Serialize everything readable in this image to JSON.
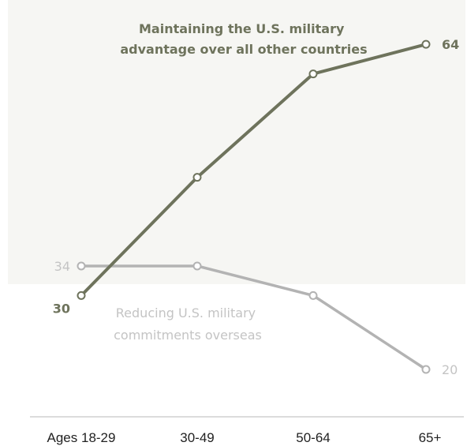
{
  "chart_data": {
    "type": "line",
    "categories": [
      "Ages 18-29",
      "30-49",
      "50-64",
      "65+"
    ],
    "ylim": [
      20,
      70
    ],
    "grid": false,
    "series": [
      {
        "name_lines": [
          "Maintaining the U.S. military",
          "advantage over all other countries"
        ],
        "values": [
          30,
          46,
          60,
          64
        ],
        "color": "#6e735c",
        "point_labels": [
          "30",
          "",
          "",
          "64"
        ],
        "label_color": "#6e735c"
      },
      {
        "name_lines": [
          "Reducing U.S. military",
          "commitments overseas"
        ],
        "values": [
          34,
          34,
          30,
          20
        ],
        "color": "#b3b3b3",
        "point_labels": [
          "34",
          "",
          "",
          "20"
        ],
        "label_color": "#c4c4c4"
      }
    ]
  },
  "colors": {
    "axis": "#c8c8c8",
    "plot_bg": "#f5f5f2"
  }
}
